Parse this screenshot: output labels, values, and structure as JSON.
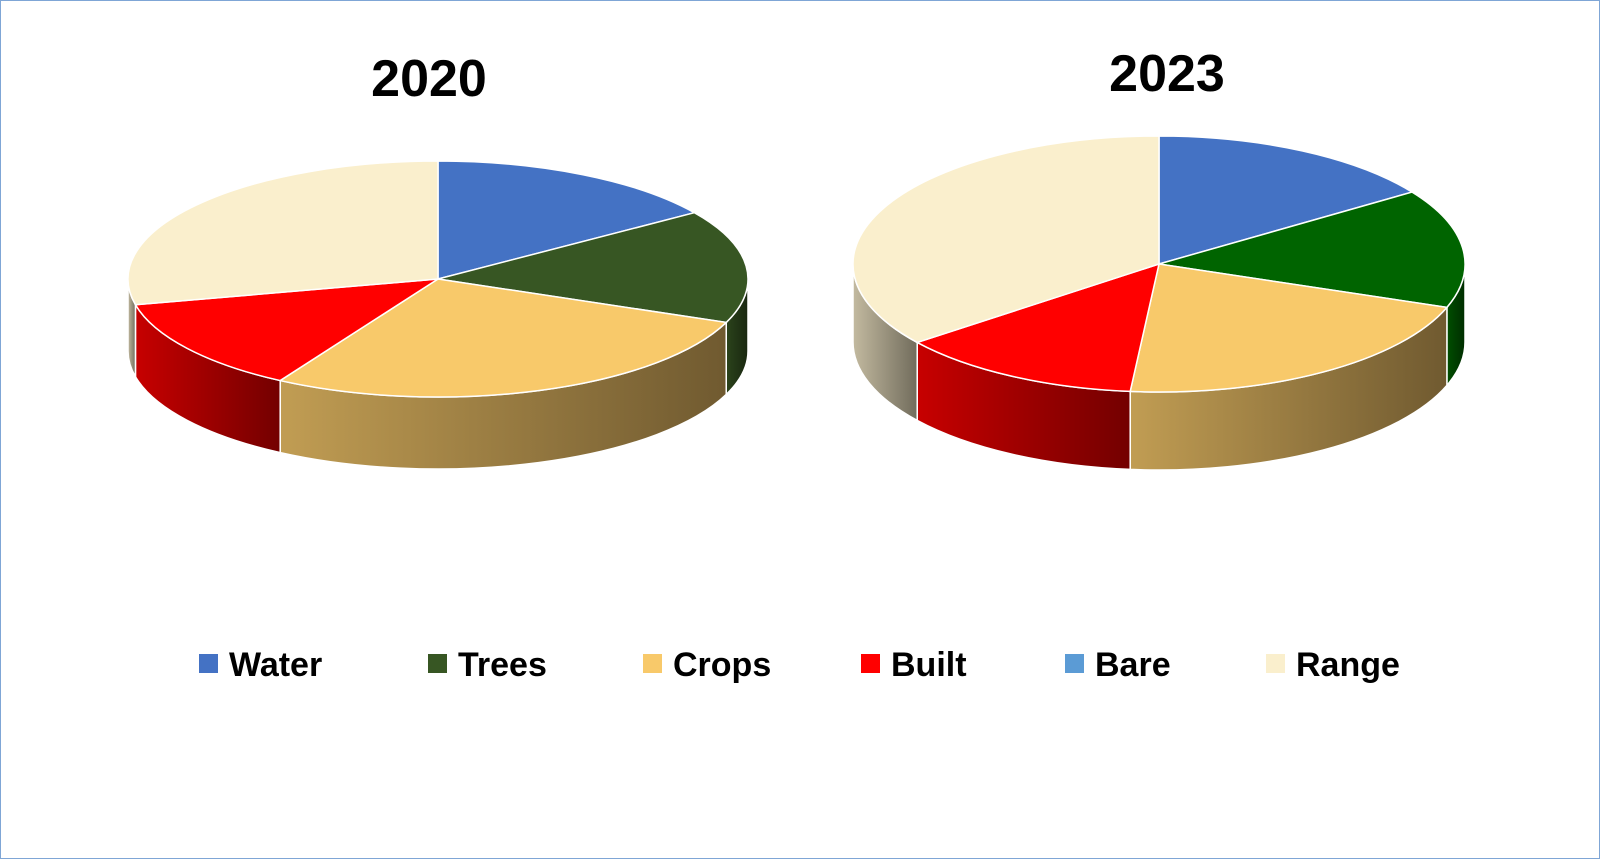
{
  "chart_data": [
    {
      "type": "pie",
      "title": "2020",
      "slices": [
        {
          "label": "Water",
          "value": 15.5
        },
        {
          "label": "Trees",
          "value": 15.5
        },
        {
          "label": "Crops",
          "value": 27.5
        },
        {
          "label": "Built",
          "value": 13.0
        },
        {
          "label": "Bare",
          "value": 0
        },
        {
          "label": "Range",
          "value": 28.5
        }
      ]
    },
    {
      "type": "pie",
      "title": "2023",
      "slices": [
        {
          "label": "Water",
          "value": 15.5
        },
        {
          "label": "Trees",
          "value": 15.0
        },
        {
          "label": "Crops",
          "value": 21.0
        },
        {
          "label": "Built",
          "value": 13.0
        },
        {
          "label": "Bare",
          "value": 0
        },
        {
          "label": "Range",
          "value": 35.5
        }
      ]
    }
  ],
  "legend": [
    {
      "label": "Water",
      "color": "#4472c4"
    },
    {
      "label": "Trees",
      "color": "#375623"
    },
    {
      "label": "Crops",
      "color": "#f8c96a"
    },
    {
      "label": "Built",
      "color": "#ff0000"
    },
    {
      "label": "Bare",
      "color": "#5b9bd5"
    },
    {
      "label": "Range",
      "color": "#faefcd"
    }
  ],
  "slice_colors": {
    "2020": {
      "Water": "#4472c4",
      "Trees": "#375623",
      "Crops": "#f8c96a",
      "Built": "#ff0000",
      "Bare": "#5b9bd5",
      "Range": "#faefcd"
    },
    "2023": {
      "Water": "#4472c4",
      "Trees": "#006400",
      "Crops": "#f8c96a",
      "Built": "#ff0000",
      "Bare": "#5b9bd5",
      "Range": "#faefcd"
    }
  }
}
